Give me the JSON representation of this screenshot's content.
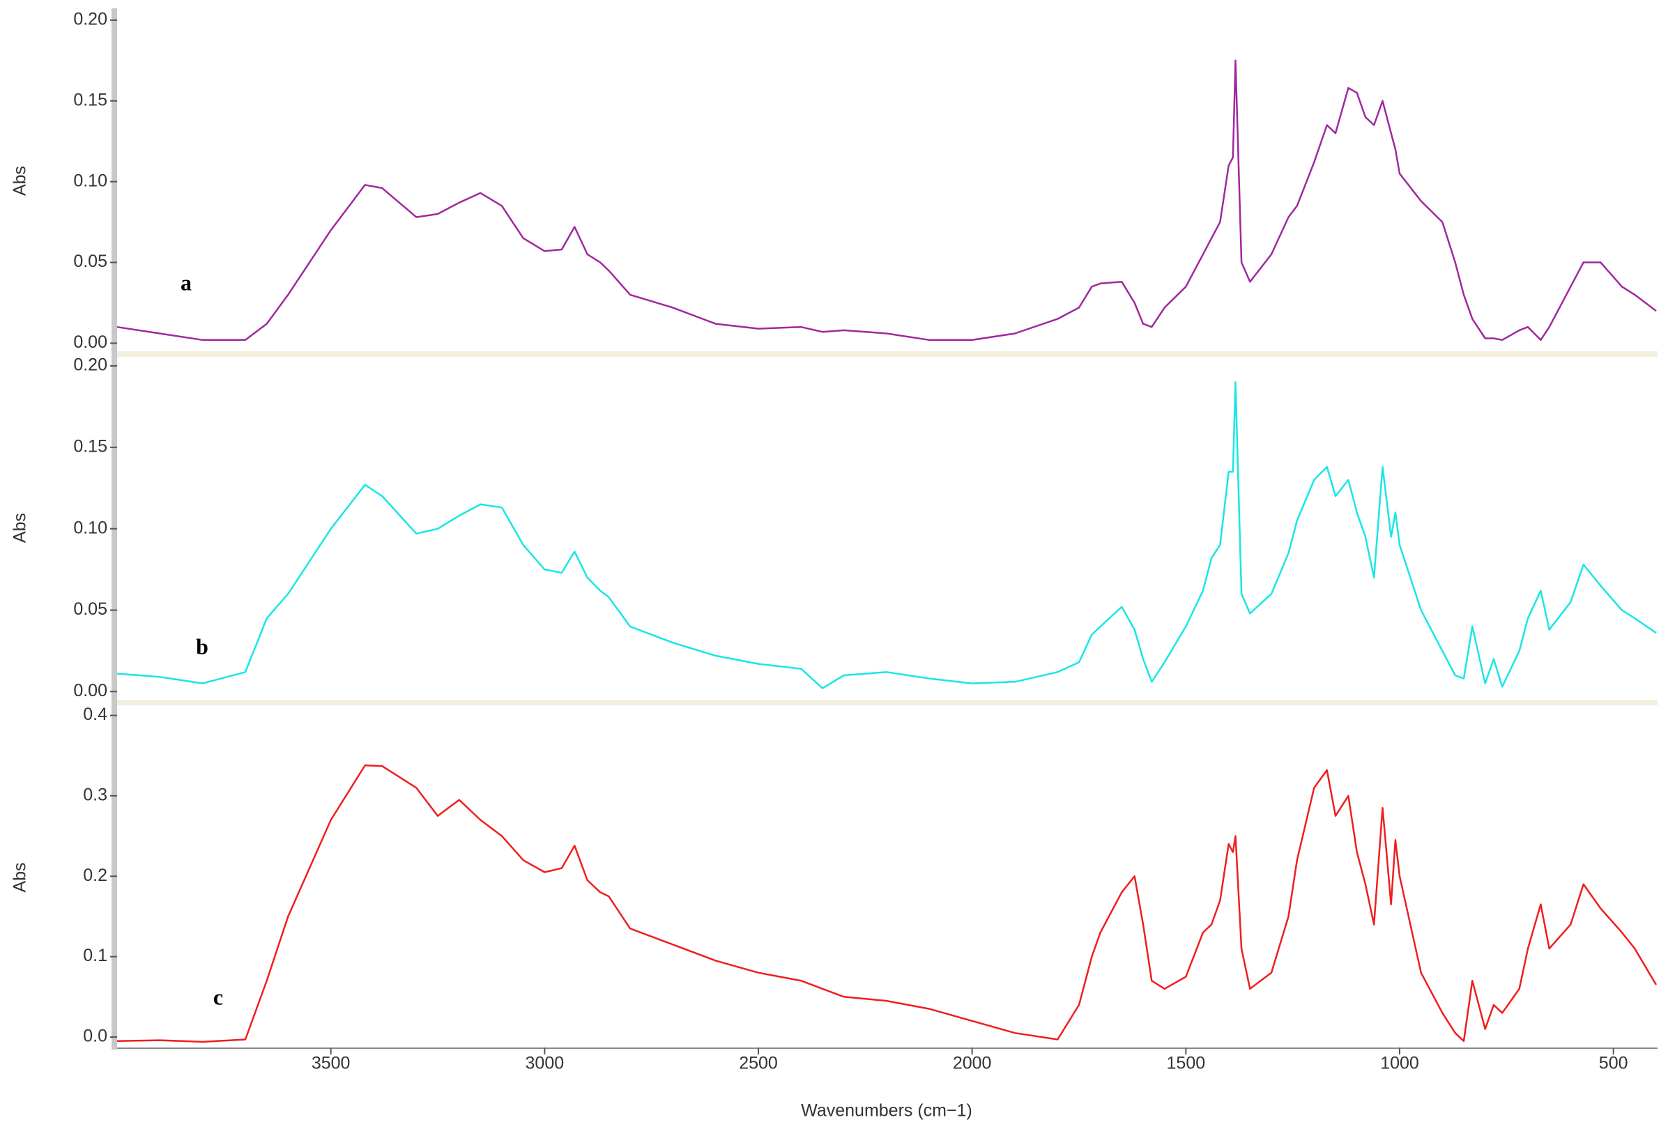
{
  "chart_data": [
    {
      "type": "line",
      "ylabel": "Abs",
      "annotation": "a",
      "color": "#a0289f",
      "xlim": [
        4000,
        400
      ],
      "ylim": [
        -0.005,
        0.206
      ],
      "yticks": [
        {
          "value": 0,
          "label": "0.00"
        },
        {
          "value": 0.05,
          "label": "0.05"
        },
        {
          "value": 0.1,
          "label": "0.10"
        },
        {
          "value": 0.15,
          "label": "0.15"
        },
        {
          "value": 0.2,
          "label": "0.20"
        }
      ],
      "x": [
        4000,
        3900,
        3800,
        3700,
        3650,
        3600,
        3500,
        3420,
        3380,
        3300,
        3250,
        3200,
        3150,
        3100,
        3050,
        3000,
        2960,
        2930,
        2900,
        2870,
        2850,
        2800,
        2700,
        2600,
        2500,
        2400,
        2350,
        2300,
        2200,
        2100,
        2000,
        1900,
        1800,
        1750,
        1720,
        1700,
        1650,
        1620,
        1600,
        1580,
        1550,
        1500,
        1460,
        1440,
        1420,
        1400,
        1390,
        1384,
        1370,
        1350,
        1300,
        1260,
        1240,
        1200,
        1170,
        1150,
        1120,
        1100,
        1080,
        1060,
        1040,
        1020,
        1010,
        1000,
        950,
        900,
        870,
        850,
        830,
        800,
        780,
        760,
        720,
        700,
        670,
        650,
        600,
        570,
        530,
        480,
        450,
        400
      ],
      "values": [
        0.01,
        0.006,
        0.002,
        0.002,
        0.012,
        0.03,
        0.07,
        0.098,
        0.096,
        0.078,
        0.08,
        0.087,
        0.093,
        0.085,
        0.065,
        0.057,
        0.058,
        0.072,
        0.055,
        0.05,
        0.045,
        0.03,
        0.022,
        0.012,
        0.009,
        0.01,
        0.007,
        0.008,
        0.006,
        0.002,
        0.002,
        0.006,
        0.015,
        0.022,
        0.035,
        0.037,
        0.038,
        0.025,
        0.012,
        0.01,
        0.022,
        0.035,
        0.055,
        0.065,
        0.075,
        0.11,
        0.115,
        0.175,
        0.05,
        0.038,
        0.055,
        0.078,
        0.085,
        0.112,
        0.135,
        0.13,
        0.158,
        0.155,
        0.14,
        0.135,
        0.15,
        0.13,
        0.12,
        0.105,
        0.088,
        0.075,
        0.05,
        0.03,
        0.015,
        0.003,
        0.003,
        0.002,
        0.008,
        0.01,
        0.002,
        0.01,
        0.035,
        0.05,
        0.05,
        0.035,
        0.03,
        0.02
      ]
    },
    {
      "type": "line",
      "ylabel": "Abs",
      "annotation": "b",
      "color": "#19e6e6",
      "xlim": [
        4000,
        400
      ],
      "ylim": [
        -0.005,
        0.206
      ],
      "yticks": [
        {
          "value": 0,
          "label": "0.00"
        },
        {
          "value": 0.05,
          "label": "0.05"
        },
        {
          "value": 0.1,
          "label": "0.10"
        },
        {
          "value": 0.15,
          "label": "0.15"
        },
        {
          "value": 0.2,
          "label": "0.20"
        }
      ],
      "x": [
        4000,
        3900,
        3800,
        3700,
        3650,
        3600,
        3500,
        3420,
        3380,
        3300,
        3250,
        3200,
        3150,
        3100,
        3050,
        3000,
        2960,
        2930,
        2900,
        2870,
        2850,
        2800,
        2700,
        2600,
        2500,
        2400,
        2350,
        2300,
        2200,
        2100,
        2000,
        1900,
        1800,
        1750,
        1720,
        1700,
        1650,
        1620,
        1600,
        1580,
        1550,
        1500,
        1460,
        1440,
        1420,
        1400,
        1390,
        1384,
        1370,
        1350,
        1300,
        1260,
        1240,
        1200,
        1170,
        1150,
        1120,
        1100,
        1080,
        1060,
        1040,
        1020,
        1010,
        1000,
        950,
        900,
        870,
        850,
        830,
        800,
        780,
        760,
        720,
        700,
        670,
        650,
        600,
        570,
        530,
        480,
        450,
        400
      ],
      "values": [
        0.011,
        0.009,
        0.005,
        0.012,
        0.045,
        0.06,
        0.1,
        0.127,
        0.12,
        0.097,
        0.1,
        0.108,
        0.115,
        0.113,
        0.09,
        0.075,
        0.073,
        0.086,
        0.07,
        0.062,
        0.058,
        0.04,
        0.03,
        0.022,
        0.017,
        0.014,
        0.002,
        0.01,
        0.012,
        0.008,
        0.005,
        0.006,
        0.012,
        0.018,
        0.035,
        0.04,
        0.052,
        0.038,
        0.02,
        0.006,
        0.018,
        0.04,
        0.062,
        0.082,
        0.09,
        0.135,
        0.135,
        0.19,
        0.06,
        0.048,
        0.06,
        0.085,
        0.105,
        0.13,
        0.138,
        0.12,
        0.13,
        0.11,
        0.095,
        0.07,
        0.138,
        0.095,
        0.11,
        0.09,
        0.05,
        0.025,
        0.01,
        0.008,
        0.04,
        0.005,
        0.02,
        0.003,
        0.025,
        0.045,
        0.062,
        0.038,
        0.055,
        0.078,
        0.065,
        0.05,
        0.045,
        0.036
      ]
    },
    {
      "type": "line",
      "ylabel": "Abs",
      "annotation": "c",
      "color": "#f01e1e",
      "xlabel": "Wavenumbers (cm−1)",
      "xlim": [
        4000,
        400
      ],
      "ylim": [
        -0.013,
        0.41
      ],
      "xticks": [
        3500,
        3000,
        2500,
        2000,
        1500,
        1000,
        500
      ],
      "yticks": [
        {
          "value": 0,
          "label": "0.0"
        },
        0.1,
        0.2,
        0.3,
        0.4
      ],
      "x": [
        4000,
        3900,
        3800,
        3700,
        3650,
        3600,
        3500,
        3420,
        3380,
        3300,
        3250,
        3200,
        3150,
        3100,
        3050,
        3000,
        2960,
        2930,
        2900,
        2870,
        2850,
        2800,
        2700,
        2600,
        2500,
        2400,
        2350,
        2300,
        2200,
        2100,
        2000,
        1900,
        1800,
        1750,
        1720,
        1700,
        1650,
        1620,
        1600,
        1580,
        1550,
        1500,
        1460,
        1440,
        1420,
        1400,
        1390,
        1384,
        1370,
        1350,
        1300,
        1260,
        1240,
        1200,
        1170,
        1150,
        1120,
        1100,
        1080,
        1060,
        1040,
        1020,
        1010,
        1000,
        950,
        900,
        870,
        850,
        830,
        800,
        780,
        760,
        720,
        700,
        670,
        650,
        600,
        570,
        530,
        480,
        450,
        400
      ],
      "values": [
        -0.005,
        -0.004,
        -0.006,
        -0.003,
        0.07,
        0.15,
        0.27,
        0.338,
        0.337,
        0.31,
        0.275,
        0.295,
        0.27,
        0.25,
        0.22,
        0.205,
        0.21,
        0.238,
        0.195,
        0.18,
        0.175,
        0.135,
        0.115,
        0.095,
        0.08,
        0.07,
        0.06,
        0.05,
        0.045,
        0.035,
        0.02,
        0.005,
        -0.003,
        0.04,
        0.1,
        0.13,
        0.18,
        0.2,
        0.14,
        0.07,
        0.06,
        0.075,
        0.13,
        0.14,
        0.17,
        0.24,
        0.23,
        0.25,
        0.11,
        0.06,
        0.08,
        0.15,
        0.22,
        0.31,
        0.332,
        0.275,
        0.3,
        0.23,
        0.19,
        0.14,
        0.285,
        0.165,
        0.245,
        0.2,
        0.08,
        0.03,
        0.005,
        -0.005,
        0.07,
        0.01,
        0.04,
        0.03,
        0.06,
        0.11,
        0.165,
        0.11,
        0.14,
        0.19,
        0.16,
        0.13,
        0.11,
        0.065
      ]
    }
  ]
}
